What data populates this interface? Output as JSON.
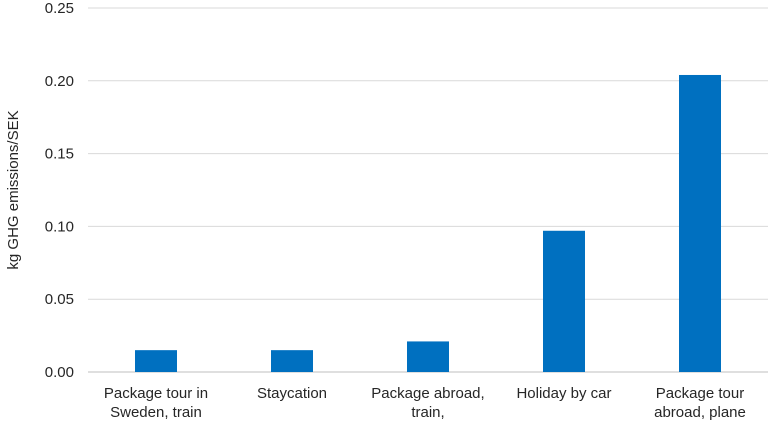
{
  "chart_data": {
    "type": "bar",
    "categories": [
      [
        "Package tour in",
        "Sweden, train"
      ],
      [
        "Staycation"
      ],
      [
        "Package abroad,",
        "train,"
      ],
      [
        "Holiday by car"
      ],
      [
        "Package tour",
        "abroad, plane"
      ]
    ],
    "values": [
      0.015,
      0.015,
      0.021,
      0.097,
      0.204
    ],
    "ylabel": "kg GHG emissions/SEK",
    "ylim": [
      0,
      0.25
    ],
    "yticks": [
      "0.00",
      "0.05",
      "0.10",
      "0.15",
      "0.20",
      "0.25"
    ],
    "grid": true,
    "bar_color": "#0070c0"
  }
}
